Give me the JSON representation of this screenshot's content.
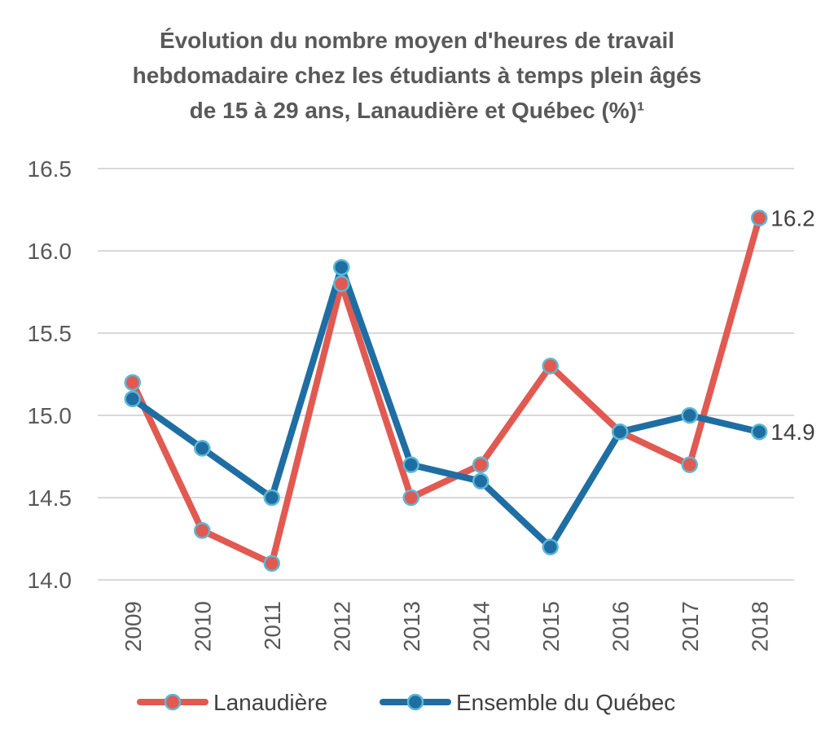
{
  "chart_data": {
    "type": "line",
    "title_lines": [
      "Évolution du nombre moyen d'heures de travail",
      "hebdomadaire chez les étudiants à temps plein âgés",
      "de 15 à 29 ans, Lanaudière et Québec (%)¹"
    ],
    "categories": [
      "2009",
      "2010",
      "2011",
      "2012",
      "2013",
      "2014",
      "2015",
      "2016",
      "2017",
      "2018"
    ],
    "series": [
      {
        "name": "Lanaudière",
        "color": "#E15A52",
        "values": [
          15.2,
          14.3,
          14.1,
          15.8,
          14.5,
          14.7,
          15.3,
          14.9,
          14.7,
          16.2
        ],
        "end_label": "16.2"
      },
      {
        "name": "Ensemble du Québec",
        "color": "#1F6EA3",
        "values": [
          15.1,
          14.8,
          14.5,
          15.9,
          14.7,
          14.6,
          14.2,
          14.9,
          15.0,
          14.9
        ],
        "end_label": "14.9"
      }
    ],
    "y_ticks": [
      "14.0",
      "14.5",
      "15.0",
      "15.5",
      "16.0",
      "16.5"
    ],
    "ylim": [
      14.0,
      16.5
    ],
    "grid": true,
    "legend_position": "bottom",
    "marker_fill_color": "#5BB8D6"
  }
}
